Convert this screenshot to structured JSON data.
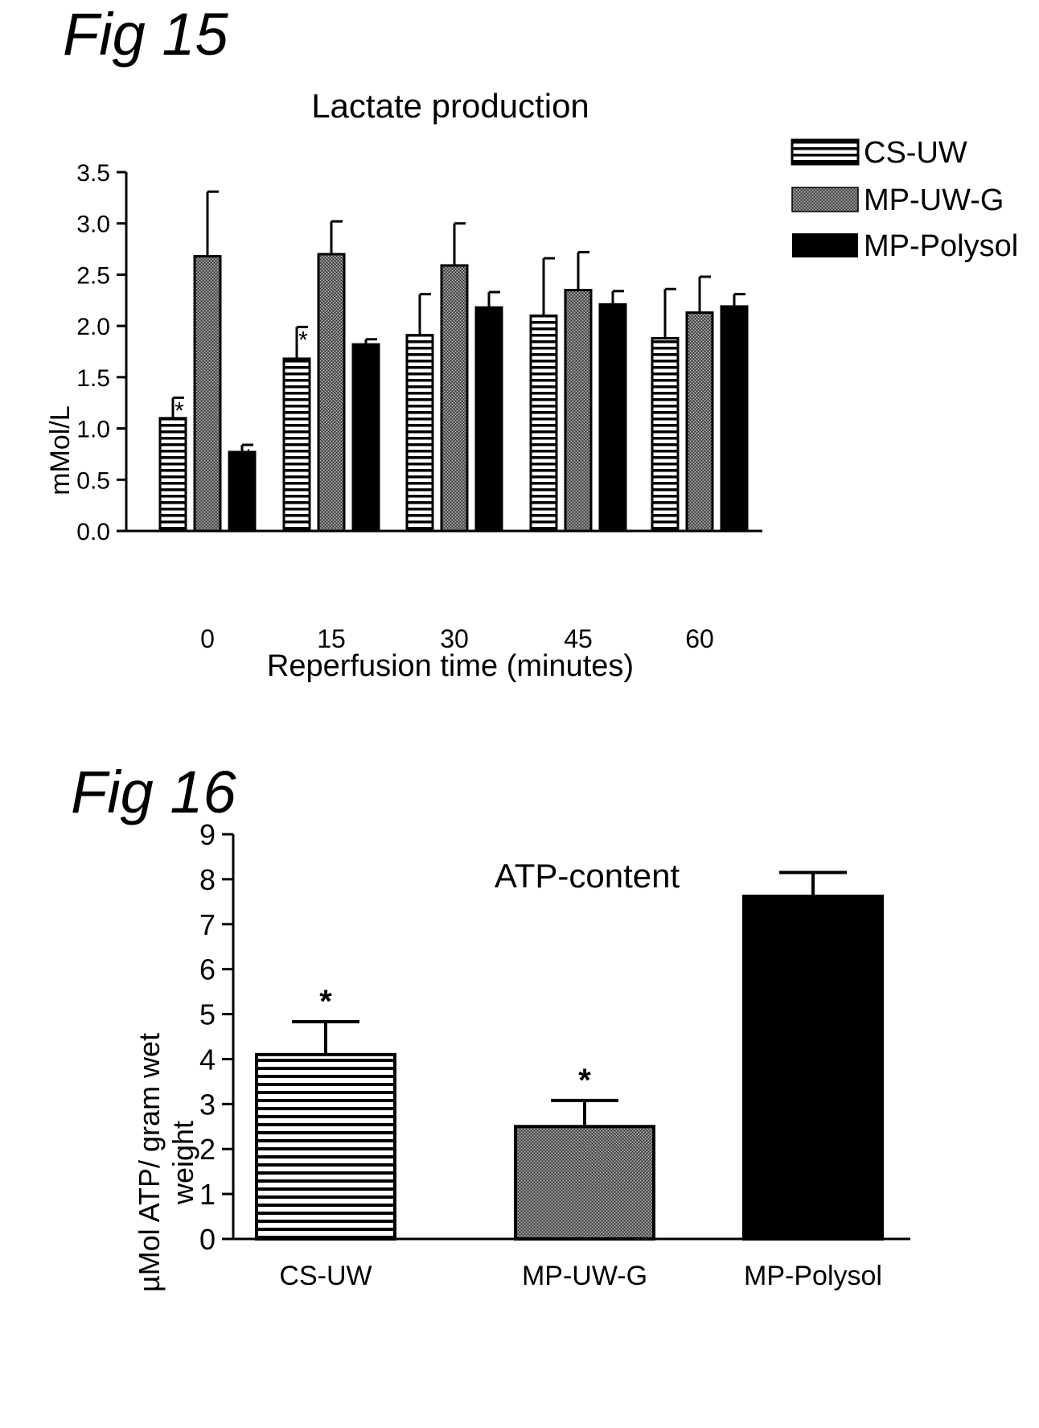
{
  "figures": [
    {
      "label": "Fig 15"
    },
    {
      "label": "Fig 16"
    }
  ],
  "chart_data": [
    {
      "type": "bar",
      "title": "Lactate production",
      "xlabel": "Reperfusion time (minutes)",
      "ylabel": "mMol/L",
      "ylim": [
        0,
        3.5
      ],
      "yticks": [
        "0.0",
        "0.5",
        "1.0",
        "1.5",
        "2.0",
        "2.5",
        "3.0",
        "3.5"
      ],
      "categories": [
        "0",
        "15",
        "30",
        "45",
        "60"
      ],
      "legend_position": "top-right",
      "grid": false,
      "series": [
        {
          "name": "CS-UW",
          "values": [
            1.1,
            1.68,
            1.91,
            2.1,
            1.88
          ],
          "errors": [
            0.2,
            0.31,
            0.4,
            0.56,
            0.48
          ],
          "markers": [
            "*",
            "*",
            "",
            "",
            ""
          ],
          "pattern": "horizontal-stripes"
        },
        {
          "name": "MP-UW-G",
          "values": [
            2.68,
            2.7,
            2.59,
            2.35,
            2.13
          ],
          "errors": [
            0.63,
            0.32,
            0.41,
            0.37,
            0.35
          ],
          "markers": [
            "",
            "",
            "",
            "",
            ""
          ],
          "pattern": "stipple"
        },
        {
          "name": "MP-Polysol",
          "values": [
            0.77,
            1.82,
            2.18,
            2.21,
            2.19
          ],
          "errors": [
            0.07,
            0.05,
            0.15,
            0.13,
            0.12
          ],
          "markers": [
            "*",
            "",
            "",
            "",
            ""
          ],
          "pattern": "solid-black"
        }
      ]
    },
    {
      "type": "bar",
      "title": "ATP-content",
      "xlabel": "",
      "ylabel": "µMol ATP/ gram wet weight",
      "ylabel_lines": [
        "µMol ATP/ gram wet",
        "weight"
      ],
      "ylim": [
        0,
        9
      ],
      "yticks": [
        "0",
        "1",
        "2",
        "3",
        "4",
        "5",
        "6",
        "7",
        "8",
        "9"
      ],
      "categories": [
        "CS-UW",
        "MP-UW-G",
        "MP-Polysol"
      ],
      "values": [
        4.1,
        2.5,
        7.62
      ],
      "errors": [
        0.73,
        0.58,
        0.53
      ],
      "markers": [
        "*",
        "*",
        ""
      ],
      "patterns": [
        "horizontal-stripes",
        "stipple",
        "solid-black"
      ]
    }
  ]
}
